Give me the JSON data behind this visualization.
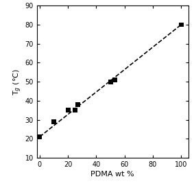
{
  "x_data": [
    0,
    10,
    20,
    25,
    27,
    50,
    53,
    100
  ],
  "y_data": [
    21,
    29,
    35,
    35,
    38,
    50,
    51,
    80
  ],
  "fit_x": [
    0,
    100
  ],
  "fit_y": [
    21,
    80
  ],
  "xlabel": "PDMA wt %",
  "ylabel": "T$_g$ (°C)",
  "xlim": [
    -2,
    105
  ],
  "ylim": [
    10,
    90
  ],
  "xticks": [
    0,
    20,
    40,
    60,
    80,
    100
  ],
  "yticks": [
    10,
    20,
    30,
    40,
    50,
    60,
    70,
    80,
    90
  ],
  "marker": "s",
  "marker_color": "black",
  "marker_size": 5,
  "line_color": "black",
  "line_style": "--",
  "line_width": 1.2,
  "background_color": "#ffffff",
  "xlabel_fontsize": 8,
  "ylabel_fontsize": 8,
  "tick_labelsize": 7
}
